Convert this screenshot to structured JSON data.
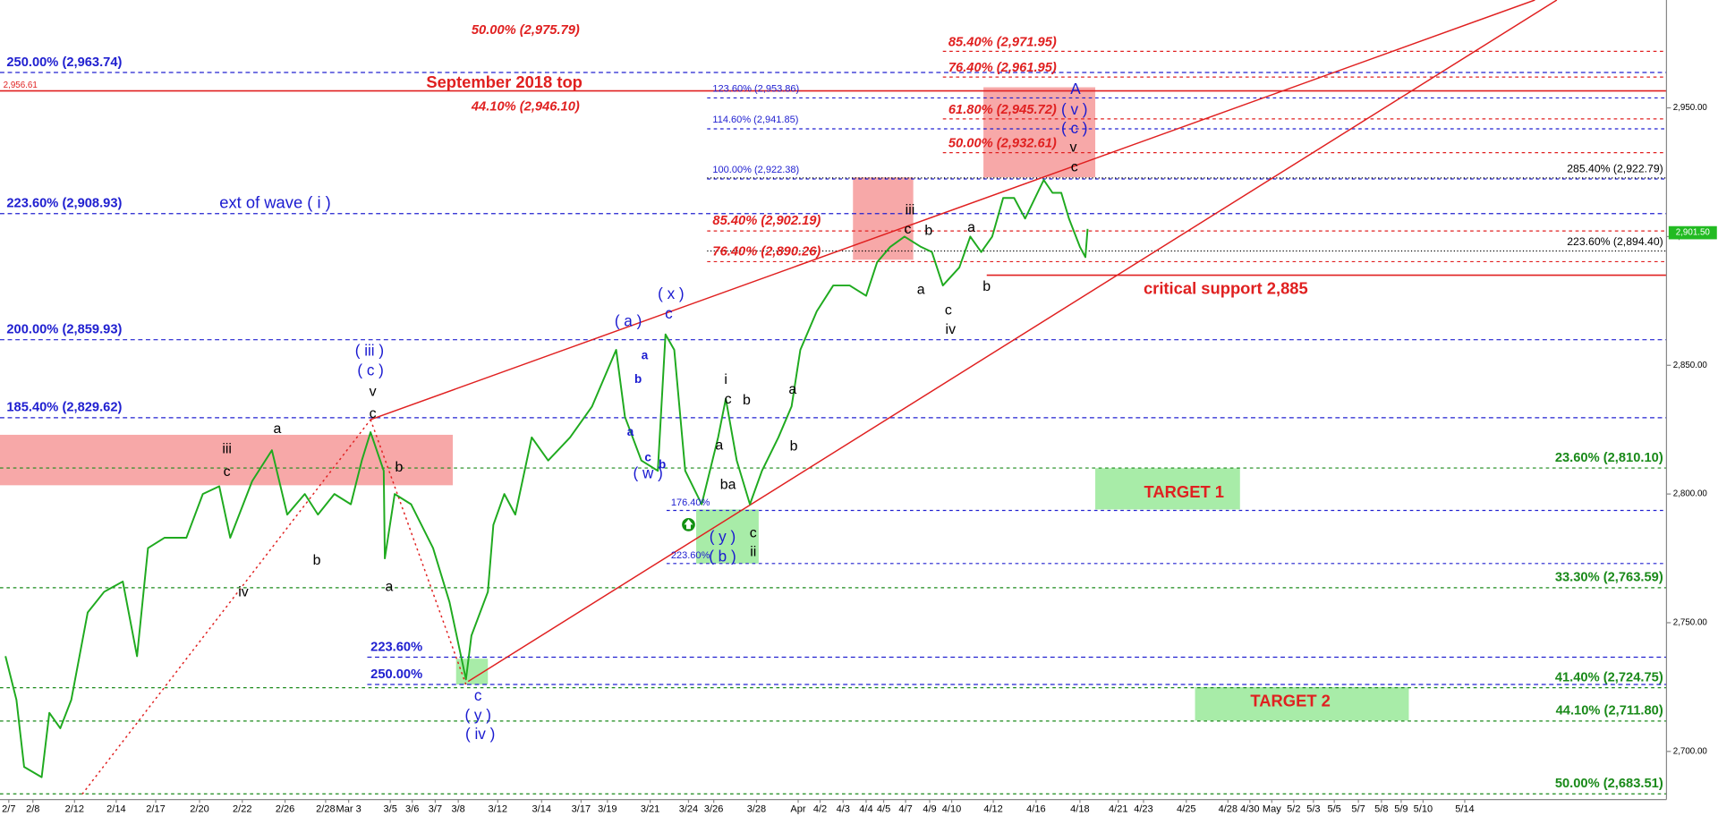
{
  "chart_data": {
    "type": "line",
    "series": [
      {
        "color": "#1faa1f",
        "x": [
          1.25,
          3.75,
          5.5,
          9.5,
          11.25,
          13.75,
          16.25,
          20,
          23.75,
          28,
          31.25,
          33.75,
          37.5,
          42.5,
          46.25,
          50,
          52.5,
          57.5,
          62,
          65.5,
          69.5,
          72.5,
          76.25,
          80,
          82.5,
          84.5,
          87.5,
          87.75,
          90,
          93.75,
          98.75,
          102.5,
          106.25,
          107.5,
          111.25,
          112.5,
          115,
          117.5,
          121.25,
          125,
          130,
          135,
          140.5,
          142.5,
          146.25,
          150,
          151.75,
          153.75,
          156.25,
          160,
          163.75,
          165.5,
          168,
          171,
          173.75,
          177.5,
          180.5,
          182.5,
          186.25,
          190,
          193.75,
          197.5,
          200,
          203,
          206.25,
          210,
          212.5,
          215,
          218.75,
          221.25,
          223.75,
          226.25,
          228.75,
          231.25,
          233.75,
          238,
          240,
          242,
          243.75,
          246.25,
          247.5,
          248
        ],
        "values": [
          2737,
          2720,
          2694,
          2690,
          2715,
          2709,
          2720,
          2754,
          2762,
          2766,
          2737,
          2779,
          2783,
          2783,
          2800,
          2803,
          2783,
          2805,
          2817,
          2792,
          2800,
          2792,
          2800,
          2796,
          2813,
          2824,
          2809,
          2775,
          2800,
          2796,
          2779,
          2758,
          2728,
          2745,
          2762,
          2788,
          2800,
          2792,
          2822,
          2813,
          2822,
          2834,
          2856,
          2830,
          2813,
          2809,
          2862,
          2856,
          2809,
          2796,
          2822,
          2837,
          2813,
          2796,
          2809,
          2822,
          2834,
          2856,
          2871,
          2881,
          2881,
          2877,
          2890,
          2896,
          2900,
          2896,
          2894,
          2881,
          2888,
          2900,
          2894,
          2900,
          2915,
          2915,
          2907,
          2922,
          2917,
          2917,
          2907,
          2896,
          2892,
          2903
        ]
      }
    ],
    "xlim": [
      0,
      380
    ],
    "ylim": [
      2681.3,
      2991.9
    ],
    "xticks": [
      {
        "value": 2,
        "label": "2/7"
      },
      {
        "value": 7.5,
        "label": "2/8"
      },
      {
        "value": 17,
        "label": "2/12"
      },
      {
        "value": 26.5,
        "label": "2/14"
      },
      {
        "value": 35.5,
        "label": "2/17"
      },
      {
        "value": 45.5,
        "label": "2/20"
      },
      {
        "value": 55.25,
        "label": "2/22"
      },
      {
        "value": 65,
        "label": "2/26"
      },
      {
        "value": 74.25,
        "label": "2/28"
      },
      {
        "value": 79.5,
        "label": "Mar 3"
      },
      {
        "value": 89,
        "label": "3/5"
      },
      {
        "value": 94,
        "label": "3/6"
      },
      {
        "value": 99.25,
        "label": "3/7"
      },
      {
        "value": 104.5,
        "label": "3/8"
      },
      {
        "value": 113.5,
        "label": "3/12"
      },
      {
        "value": 123.5,
        "label": "3/14"
      },
      {
        "value": 132.5,
        "label": "3/17"
      },
      {
        "value": 138.5,
        "label": "3/19"
      },
      {
        "value": 148.25,
        "label": "3/21"
      },
      {
        "value": 157,
        "label": "3/24"
      },
      {
        "value": 162.75,
        "label": "3/26"
      },
      {
        "value": 172.5,
        "label": "3/28"
      },
      {
        "value": 182,
        "label": "Apr"
      },
      {
        "value": 187,
        "label": "4/2"
      },
      {
        "value": 192.25,
        "label": "4/3"
      },
      {
        "value": 197.5,
        "label": "4/4"
      },
      {
        "value": 201.5,
        "label": "4/5"
      },
      {
        "value": 206.5,
        "label": "4/7"
      },
      {
        "value": 212,
        "label": "4/9"
      },
      {
        "value": 217,
        "label": "4/10"
      },
      {
        "value": 226.5,
        "label": "4/12"
      },
      {
        "value": 236.25,
        "label": "4/16"
      },
      {
        "value": 246.25,
        "label": "4/18"
      },
      {
        "value": 255,
        "label": "4/21"
      },
      {
        "value": 260.75,
        "label": "4/23"
      },
      {
        "value": 270.5,
        "label": "4/25"
      },
      {
        "value": 280,
        "label": "4/28"
      },
      {
        "value": 285,
        "label": "4/30"
      },
      {
        "value": 290,
        "label": "May"
      },
      {
        "value": 295,
        "label": "5/2"
      },
      {
        "value": 299.5,
        "label": "5/3"
      },
      {
        "value": 304.25,
        "label": "5/5"
      },
      {
        "value": 309.75,
        "label": "5/7"
      },
      {
        "value": 315,
        "label": "5/8"
      },
      {
        "value": 319.5,
        "label": "5/9"
      },
      {
        "value": 324.5,
        "label": "5/10"
      },
      {
        "value": 334,
        "label": "5/14"
      }
    ],
    "yticks": [
      {
        "value": 2700,
        "label": "2,700.00"
      },
      {
        "value": 2750,
        "label": "2,750.00"
      },
      {
        "value": 2800,
        "label": "2,800.00"
      },
      {
        "value": 2850,
        "label": "2,850.00"
      },
      {
        "value": 2900,
        "label": "2,900.00"
      },
      {
        "value": 2950,
        "label": "2,950.00"
      }
    ],
    "last_price": {
      "value": 2901.5,
      "label": "2,901.50",
      "color": "#22bb22"
    },
    "levels": {
      "left_blue": {
        "color": "#2020d0",
        "lines": [
          {
            "label": "250.00% (2,963.74)",
            "value": 2963.74
          },
          {
            "label": "223.60% (2,908.93)",
            "value": 2908.93
          },
          {
            "label": "200.00% (2,859.93)",
            "value": 2859.93
          },
          {
            "label": "185.40% (2,829.62)",
            "value": 2829.62
          }
        ]
      },
      "top": {
        "color": "#e02020",
        "lines": [
          {
            "label": "2,956.61",
            "value": 2956.61
          }
        ]
      },
      "mid_red": {
        "color": "#e02020",
        "lines": [
          {
            "label": "50.00% (2,975.79)",
            "value": 2975.79
          },
          {
            "label": "44.10% (2,946.10)",
            "value": 2946.1
          }
        ]
      },
      "red_right": {
        "color": "#e02020",
        "lines": [
          {
            "label": "85.40% (2,971.95)",
            "value": 2971.95
          },
          {
            "label": "76.40% (2,961.95)",
            "value": 2961.95
          },
          {
            "label": "61.80% (2,945.72)",
            "value": 2945.72
          },
          {
            "label": "50.00% (2,932.61)",
            "value": 2932.61
          }
        ]
      },
      "red_mid": {
        "color": "#e02020",
        "lines": [
          {
            "label": "85.40% (2,902.19)",
            "value": 2902.19
          },
          {
            "label": "76.40% (2,890.26)",
            "value": 2890.26
          }
        ]
      },
      "blue_small": {
        "color": "#2020d0",
        "lines": [
          {
            "label": "123.60% (2,953.86)",
            "value": 2953.86
          },
          {
            "label": "114.60% (2,941.85)",
            "value": 2941.85
          },
          {
            "label": "100.00% (2,922.38)",
            "value": 2922.38
          }
        ]
      },
      "black_right": {
        "color": "#000000",
        "lines": [
          {
            "label": "285.40% (2,922.79)",
            "value": 2922.79
          },
          {
            "label": "223.60% (2,894.40)",
            "value": 2894.4
          }
        ]
      },
      "green_right": {
        "color": "#1a8a1a",
        "lines": [
          {
            "label": "23.60% (2,810.10)",
            "value": 2810.1
          },
          {
            "label": "33.30% (2,763.59)",
            "value": 2763.59
          },
          {
            "label": "41.40% (2,724.75)",
            "value": 2724.75
          },
          {
            "label": "44.10% (2,711.80)",
            "value": 2711.8
          },
          {
            "label": "50.00% (2,683.51)",
            "value": 2683.51
          }
        ]
      },
      "fib_low": {
        "color": "#2020d0",
        "lines": [
          {
            "label": "223.60%",
            "value": 2736.6
          },
          {
            "label": "250.00%",
            "value": 2726
          }
        ]
      },
      "fib_small_low": {
        "color": "#2020d0",
        "lines": [
          {
            "label": "176.40%",
            "value": 2793.6
          },
          {
            "label": "223.60%",
            "value": 2773
          }
        ]
      },
      "support": {
        "color": "#e02020",
        "lines": [
          {
            "label": "critical support 2,885",
            "value": 2885
          }
        ]
      }
    },
    "zones": {
      "red": {
        "color": "#f7a8a8",
        "boxes": [
          {
            "x": [
              0,
              103.25
            ],
            "y": [
              2803.4,
              2823
            ]
          },
          {
            "x": [
              194.5,
              208.25
            ],
            "y": [
              2891,
              2923
            ]
          },
          {
            "x": [
              224.25,
              249.75
            ],
            "y": [
              2923,
              2958
            ]
          }
        ]
      },
      "green": {
        "color": "#a8eca8",
        "boxes": [
          {
            "x": [
              104,
              111.25
            ],
            "y": [
              2726,
              2736
            ]
          },
          {
            "x": [
              158.75,
              173
            ],
            "y": [
              2773,
              2794
            ]
          },
          {
            "x": [
              249.75,
              282.75
            ],
            "y": [
              2794,
              2810
            ]
          },
          {
            "x": [
              272.5,
              321.25
            ],
            "y": [
              2712,
              2725
            ]
          }
        ]
      }
    },
    "trend_lines": {
      "solid": {
        "color": "#e02020",
        "lines": [
          {
            "x": [
              84.5,
              350
            ],
            "y": [
              2828.9,
              2991.9
            ]
          },
          {
            "x": [
              106.75,
              355
            ],
            "y": [
              2727.2,
              2991.9
            ]
          }
        ]
      },
      "dotted": {
        "color": "#e02020",
        "lines": [
          {
            "x": [
              18.75,
              84.5
            ],
            "y": [
              2683.4,
              2828.9
            ]
          },
          {
            "x": [
              84.5,
              106.25
            ],
            "y": [
              2828.9,
              2726
            ]
          }
        ]
      }
    },
    "annotations": {
      "waves_black": {
        "color": "#000000",
        "items": [
          {
            "text": "iii",
            "x": 51.75,
            "y": 2817.4
          },
          {
            "text": "c",
            "x": 51.75,
            "y": 2808.5
          },
          {
            "text": "iv",
            "x": 55.5,
            "y": 2761.7
          },
          {
            "text": "a",
            "x": 63.25,
            "y": 2825.1
          },
          {
            "text": "b",
            "x": 72.25,
            "y": 2774
          },
          {
            "text": "v",
            "x": 85,
            "y": 2839.6
          },
          {
            "text": "c",
            "x": 85,
            "y": 2831.1
          },
          {
            "text": "b",
            "x": 91,
            "y": 2810.2
          },
          {
            "text": "a",
            "x": 88.75,
            "y": 2763.8
          },
          {
            "text": "i",
            "x": 165.5,
            "y": 2844.3
          },
          {
            "text": "c",
            "x": 166,
            "y": 2836.6
          },
          {
            "text": "b",
            "x": 170.25,
            "y": 2836.2
          },
          {
            "text": "a",
            "x": 164,
            "y": 2818.7
          },
          {
            "text": "ba",
            "x": 166,
            "y": 2803.4
          },
          {
            "text": "c",
            "x": 171.75,
            "y": 2784.7
          },
          {
            "text": "ii",
            "x": 171.75,
            "y": 2777.4
          },
          {
            "text": "a",
            "x": 180.75,
            "y": 2840.4
          },
          {
            "text": "b",
            "x": 181,
            "y": 2818.3
          },
          {
            "text": "iii",
            "x": 207.5,
            "y": 2910.2
          },
          {
            "text": "c",
            "x": 207,
            "y": 2902.6
          },
          {
            "text": "b",
            "x": 211.75,
            "y": 2902.1
          },
          {
            "text": "a",
            "x": 210,
            "y": 2879.1
          },
          {
            "text": "a",
            "x": 221.5,
            "y": 2903.4
          },
          {
            "text": "c",
            "x": 216.25,
            "y": 2871.1
          },
          {
            "text": "iv",
            "x": 216.75,
            "y": 2863.8
          },
          {
            "text": "b",
            "x": 225,
            "y": 2880.4
          },
          {
            "text": "v",
            "x": 244.75,
            "y": 2934.5
          },
          {
            "text": "c",
            "x": 245,
            "y": 2926.8
          }
        ]
      },
      "waves_blue": {
        "color": "#1a1ad0",
        "items": [
          {
            "text": "( iii )",
            "x": 84.25,
            "y": 2855.3
          },
          {
            "text": "( c )",
            "x": 84.5,
            "y": 2847.7
          },
          {
            "text": "c",
            "x": 109,
            "y": 2721.3
          },
          {
            "text": "( y )",
            "x": 109,
            "y": 2713.6
          },
          {
            "text": "( iv )",
            "x": 109.5,
            "y": 2706.4
          },
          {
            "text": "( a )",
            "x": 143.25,
            "y": 2866.8
          },
          {
            "text": "( x )",
            "x": 153,
            "y": 2877.4
          },
          {
            "text": "c",
            "x": 152.5,
            "y": 2869.8
          },
          {
            "text": "( w )",
            "x": 147.75,
            "y": 2807.7
          },
          {
            "text": "( y )",
            "x": 164.75,
            "y": 2783
          },
          {
            "text": "( b )",
            "x": 164.75,
            "y": 2775.3
          },
          {
            "text": "A",
            "x": 245.25,
            "y": 2957
          },
          {
            "text": "( v )",
            "x": 245,
            "y": 2948.9
          },
          {
            "text": "( c )",
            "x": 245,
            "y": 2941.7
          }
        ]
      },
      "waves_blue_small": {
        "color": "#1a1ad0",
        "items": [
          {
            "text": "a",
            "x": 147,
            "y": 2853.6
          },
          {
            "text": "b",
            "x": 145.5,
            "y": 2844.3
          },
          {
            "text": "a",
            "x": 143.75,
            "y": 2823.8
          },
          {
            "text": "c",
            "x": 147.75,
            "y": 2814
          },
          {
            "text": "b",
            "x": 151,
            "y": 2811.1
          }
        ]
      },
      "callouts_red": {
        "color": "#e02020",
        "items": [
          {
            "text": "September 2018 top",
            "x": 115,
            "y": 2959.6
          },
          {
            "text": "TARGET 1",
            "x": 270,
            "y": 2800.4
          },
          {
            "text": "TARGET 2",
            "x": 294.25,
            "y": 2719.1
          }
        ]
      },
      "callouts_blue": {
        "color": "#1a1ad0",
        "items": [
          {
            "text": "ext of wave ( i )",
            "x": 62.75,
            "y": 2912.8
          }
        ]
      }
    }
  }
}
